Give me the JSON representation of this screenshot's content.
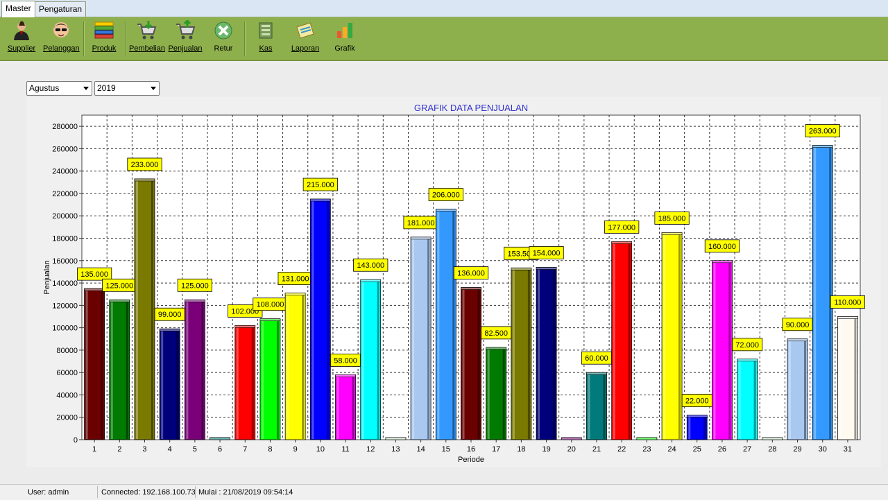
{
  "tabs": [
    "Master",
    "Pengaturan"
  ],
  "toolbar": {
    "supplier": "Supplier",
    "pelanggan": "Pelanggan",
    "produk": "Produk",
    "pembelian": "Pembelian",
    "penjualan": "Penjualan",
    "retur": "Retur",
    "kas": "Kas",
    "laporan": "Laporan",
    "grafik": "Grafik"
  },
  "filters": {
    "month": "Agustus",
    "year": "2019"
  },
  "status": {
    "user": "User: admin",
    "connected": "Connected: 192.168.100.73",
    "started": "Mulai : 21/08/2019  09:54:14"
  },
  "colors": {
    "ribbon": "#8db04c",
    "title": "#3333cc",
    "label_bg": "#ffff00"
  },
  "chart_data": {
    "type": "bar",
    "title": "GRAFIK DATA PENJUALAN",
    "xlabel": "Periode",
    "ylabel": "Penjualan",
    "ylim": [
      0,
      290000
    ],
    "yticks": [
      0,
      20000,
      40000,
      60000,
      80000,
      100000,
      120000,
      140000,
      160000,
      180000,
      200000,
      220000,
      240000,
      260000,
      280000
    ],
    "grid": true,
    "categories": [
      "1",
      "2",
      "3",
      "4",
      "5",
      "6",
      "7",
      "8",
      "9",
      "10",
      "11",
      "12",
      "13",
      "14",
      "15",
      "16",
      "17",
      "18",
      "19",
      "20",
      "21",
      "22",
      "23",
      "24",
      "25",
      "26",
      "27",
      "28",
      "29",
      "30",
      "31"
    ],
    "values": [
      135000,
      125000,
      233000,
      99000,
      125000,
      0,
      102000,
      108000,
      131000,
      215000,
      58000,
      143000,
      0,
      181000,
      206000,
      136000,
      82500,
      153500,
      154000,
      0,
      60000,
      177000,
      0,
      185000,
      22000,
      160000,
      72000,
      0,
      90000,
      263000,
      110000
    ],
    "data_labels": [
      "135.000",
      "125.000",
      "233.000",
      "99.000",
      "125.000",
      "",
      "102.000",
      "108.000",
      "131.000",
      "215.000",
      "58.000",
      "143.000",
      "",
      "181.000",
      "206.000",
      "136.000",
      "82.500",
      "153.500",
      "154.000",
      "",
      "60.000",
      "177.000",
      "",
      "185.000",
      "22.000",
      "160.000",
      "72.000",
      "",
      "90.000",
      "263.000",
      "110.000"
    ],
    "bar_colors": [
      "#6b0000",
      "#007a00",
      "#7a7a00",
      "#00007a",
      "#7a007a",
      "#007a7a",
      "#ff0000",
      "#00ff00",
      "#ffff00",
      "#0000ff",
      "#ff00ff",
      "#00ffff",
      "#c8e8c8",
      "#a8c8f0",
      "#3399ff",
      "#6b0000",
      "#007a00",
      "#7a7a00",
      "#00007a",
      "#7a007a",
      "#007a7a",
      "#ff0000",
      "#00ff00",
      "#ffff00",
      "#0000ff",
      "#ff00ff",
      "#00ffff",
      "#c8e8c8",
      "#a8c8f0",
      "#3399ff",
      "#fffaf0"
    ]
  }
}
